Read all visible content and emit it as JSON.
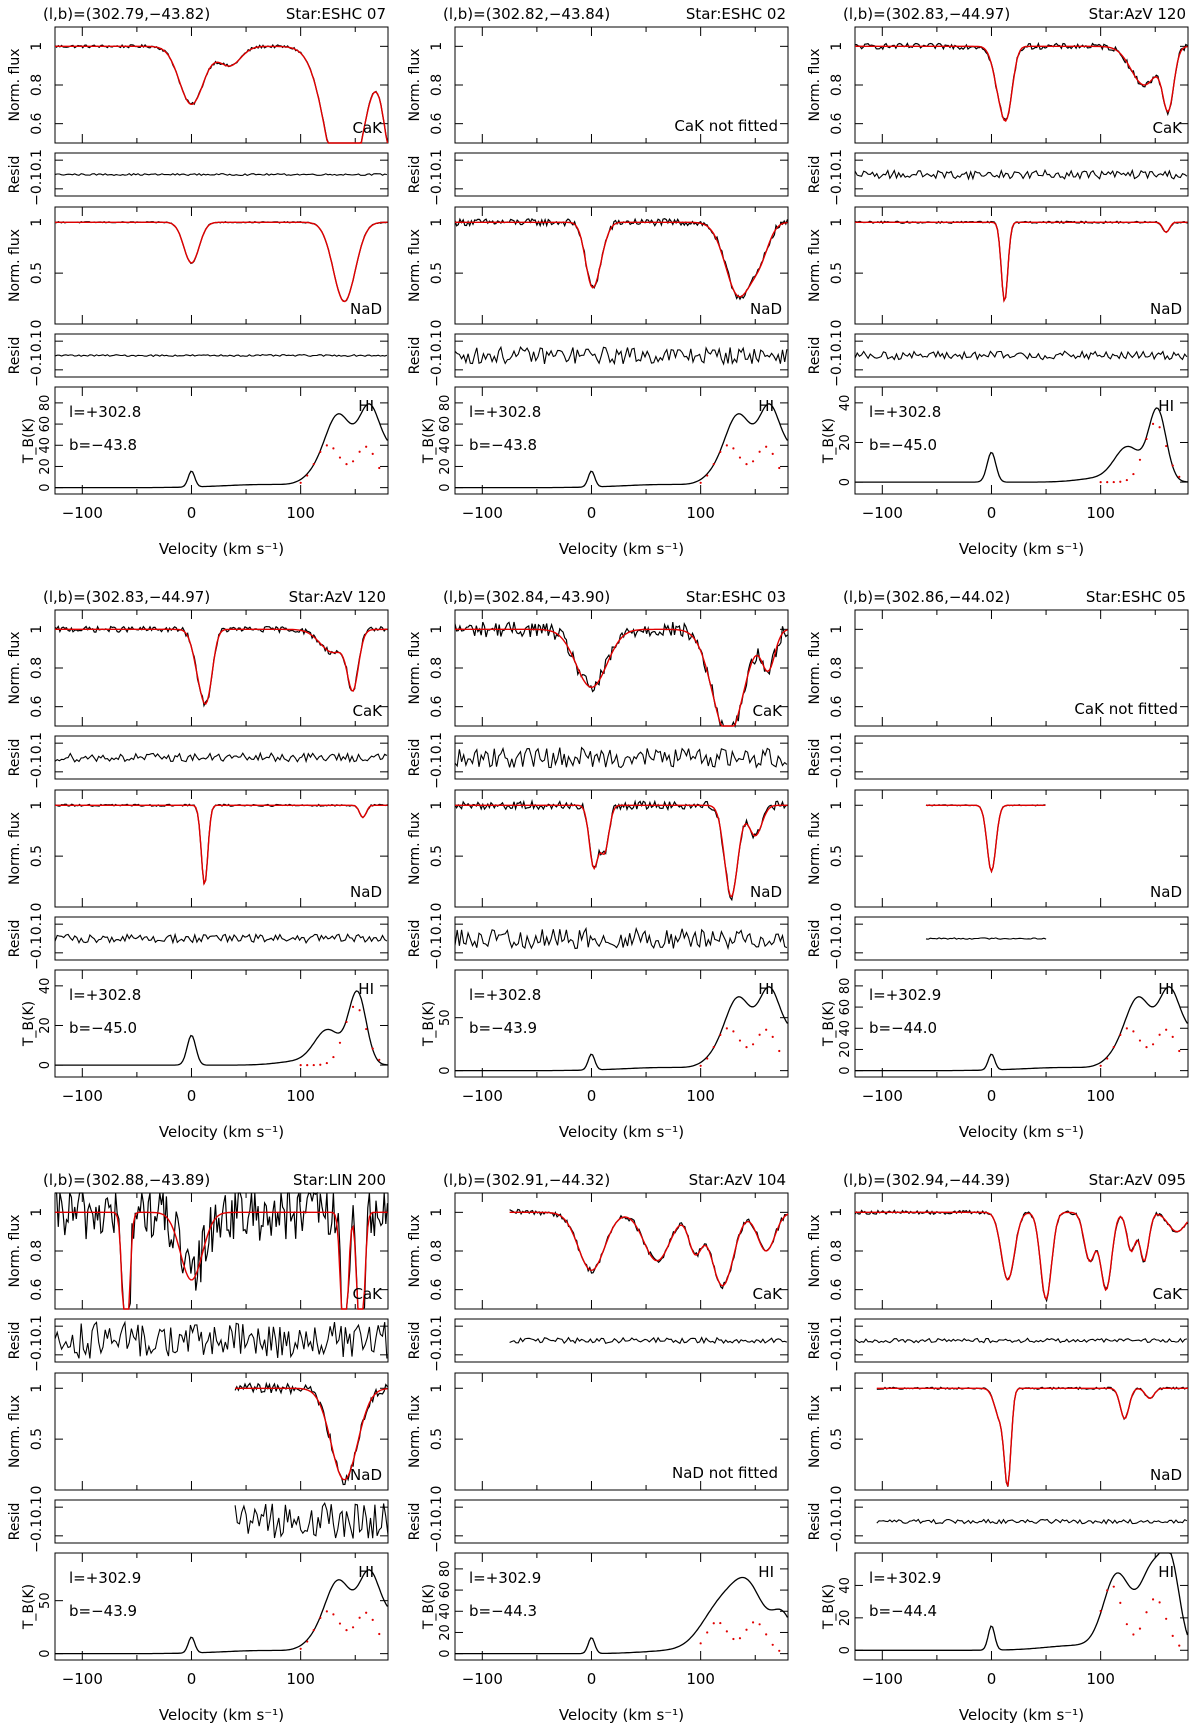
{
  "chart_data": {
    "type": "line",
    "labels": {
      "cak_ylabel": "Norm. flux",
      "nad_ylabel": "Norm. flux",
      "resid_ylabel": "Resid",
      "hi_ylabel": "T_B(K)",
      "xlabel": "Velocity (km s⁻¹)",
      "cak_label": "CaK",
      "nad_label": "NaD",
      "hi_label": "HI",
      "cak_not_fitted": "CaK not fitted",
      "nad_not_fitted": "NaD not fitted"
    },
    "x_axis": {
      "range": [
        -125,
        180
      ],
      "ticks": [
        -100,
        0,
        100
      ]
    },
    "cak_axis": {
      "range": [
        0.5,
        1.1
      ],
      "ticks": [
        0.6,
        0.8,
        1
      ]
    },
    "nad_axis": {
      "range": [
        0,
        1.15
      ],
      "ticks": [
        0,
        0.5,
        1
      ]
    },
    "resid_axis": {
      "range": [
        -0.15,
        0.15
      ],
      "ticks": [
        -0.1,
        0,
        0.1
      ]
    },
    "panels": [
      {
        "coords": "(l,b)=(302.79,−43.82)",
        "star": "Star:ESHC 07",
        "l_text": "l=+302.8",
        "b_text": "b=−43.8",
        "cak": {
          "xmin": -125,
          "xmax": 180,
          "comps": [
            [
              0,
              0.3,
              11
            ],
            [
              35,
              0.1,
              10
            ],
            [
              140,
              0.8,
              16
            ],
            [
              185,
              0.6,
              8
            ]
          ],
          "noise": 0.008
        },
        "nad": {
          "xmin": -125,
          "xmax": 180,
          "comps": [
            [
              0,
              0.4,
              7
            ],
            [
              140,
              0.78,
              10
            ]
          ],
          "noise": 0.006
        },
        "hi": {
          "ymax": 95,
          "ticks": [
            0,
            20,
            40,
            60,
            80
          ],
          "comps": [
            [
              0,
              15,
              3
            ],
            [
              70,
              3,
              40
            ],
            [
              115,
              10,
              12
            ],
            [
              135,
              65,
              12
            ],
            [
              163,
              72,
              10
            ],
            [
              185,
              30,
              10
            ]
          ],
          "dotted": [
            [
              125,
              40,
              12
            ],
            [
              160,
              38,
              10
            ]
          ]
        },
        "resid_noise": 0.006
      },
      {
        "coords": "(l,b)=(302.82,−43.84)",
        "star": "Star:ESHC 02",
        "l_text": "l=+302.8",
        "b_text": "b=−43.8",
        "cak": null,
        "nad": {
          "xmin": -125,
          "xmax": 180,
          "comps": [
            [
              0,
              0.55,
              6
            ],
            [
              8,
              0.2,
              6
            ],
            [
              135,
              0.72,
              12
            ],
            [
              155,
              0.25,
              8
            ]
          ],
          "noise": 0.035
        },
        "hi": {
          "ymax": 95,
          "ticks": [
            0,
            20,
            40,
            60,
            80
          ],
          "comps": [
            [
              0,
              15,
              3
            ],
            [
              70,
              3,
              40
            ],
            [
              115,
              10,
              12
            ],
            [
              135,
              65,
              12
            ],
            [
              163,
              72,
              10
            ],
            [
              185,
              30,
              10
            ]
          ],
          "dotted": [
            [
              125,
              40,
              12
            ],
            [
              160,
              38,
              10
            ]
          ]
        },
        "resid_noise": 0.06
      },
      {
        "coords": "(l,b)=(302.83,−44.97)",
        "star": "Star:AzV 120",
        "l_text": "l=+302.8",
        "b_text": "b=−45.0",
        "cak": {
          "xmin": -125,
          "xmax": 180,
          "comps": [
            [
              8,
              0.22,
              6
            ],
            [
              15,
              0.25,
              5
            ],
            [
              140,
              0.2,
              12
            ],
            [
              162,
              0.3,
              5
            ]
          ],
          "noise": 0.015
        },
        "nad": {
          "xmin": -125,
          "xmax": 180,
          "comps": [
            [
              12,
              0.78,
              3
            ],
            [
              160,
              0.1,
              3
            ]
          ],
          "noise": 0.01
        },
        "hi": {
          "ymax": 48,
          "ticks": [
            0,
            20,
            40
          ],
          "comps": [
            [
              0,
              15,
              4
            ],
            [
              125,
              17,
              12
            ],
            [
              152,
              36,
              8
            ],
            [
              100,
              2,
              20
            ]
          ],
          "dotted": [
            [
              150,
              30,
              10
            ]
          ]
        },
        "resid_noise": 0.03
      },
      {
        "coords": "(l,b)=(302.83,−44.97)",
        "star": "Star:AzV 120",
        "l_text": "l=+302.8",
        "b_text": "b=−45.0",
        "cak": {
          "xmin": -125,
          "xmax": 180,
          "comps": [
            [
              8,
              0.22,
              6
            ],
            [
              15,
              0.25,
              5
            ],
            [
              130,
              0.12,
              12
            ],
            [
              148,
              0.28,
              5
            ]
          ],
          "noise": 0.015
        },
        "nad": {
          "xmin": -125,
          "xmax": 180,
          "comps": [
            [
              12,
              0.78,
              3
            ],
            [
              157,
              0.12,
              3
            ]
          ],
          "noise": 0.01
        },
        "hi": {
          "ymax": 48,
          "ticks": [
            0,
            20,
            40
          ],
          "comps": [
            [
              0,
              15,
              4
            ],
            [
              125,
              17,
              12
            ],
            [
              152,
              36,
              8
            ],
            [
              100,
              2,
              20
            ]
          ],
          "dotted": [
            [
              150,
              30,
              10
            ]
          ]
        },
        "resid_noise": 0.03
      },
      {
        "coords": "(l,b)=(302.84,−43.90)",
        "star": "Star:ESHC 03",
        "l_text": "l=+302.8",
        "b_text": "b=−43.9",
        "cak": {
          "xmin": -125,
          "xmax": 180,
          "comps": [
            [
              0,
              0.3,
              14
            ],
            [
              125,
              0.55,
              14
            ],
            [
              162,
              0.2,
              6
            ]
          ],
          "noise": 0.04
        },
        "nad": {
          "xmin": -125,
          "xmax": 180,
          "comps": [
            [
              2,
              0.6,
              4
            ],
            [
              12,
              0.45,
              4
            ],
            [
              128,
              0.9,
              6
            ],
            [
              150,
              0.3,
              6
            ]
          ],
          "noise": 0.04
        },
        "hi": {
          "ymax": 95,
          "ticks": [
            0,
            50
          ],
          "comps": [
            [
              0,
              15,
              3
            ],
            [
              70,
              3,
              40
            ],
            [
              115,
              10,
              12
            ],
            [
              135,
              65,
              12
            ],
            [
              163,
              72,
              10
            ],
            [
              185,
              30,
              10
            ]
          ],
          "dotted": [
            [
              125,
              40,
              12
            ],
            [
              160,
              38,
              10
            ]
          ]
        },
        "resid_noise": 0.07
      },
      {
        "coords": "(l,b)=(302.86,−44.02)",
        "star": "Star:ESHC 05",
        "l_text": "l=+302.9",
        "b_text": "b=−44.0",
        "cak": null,
        "nad": {
          "xmin": -60,
          "xmax": 50,
          "comps": [
            [
              0,
              0.65,
              4
            ]
          ],
          "noise": 0.005
        },
        "hi": {
          "ymax": 95,
          "ticks": [
            0,
            20,
            40,
            60,
            80
          ],
          "comps": [
            [
              0,
              15,
              3
            ],
            [
              70,
              3,
              40
            ],
            [
              115,
              10,
              12
            ],
            [
              135,
              65,
              12
            ],
            [
              163,
              72,
              10
            ],
            [
              185,
              30,
              10
            ]
          ],
          "dotted": [
            [
              125,
              40,
              12
            ],
            [
              160,
              38,
              10
            ]
          ]
        },
        "resid_noise": 0.005
      },
      {
        "coords": "(l,b)=(302.88,−43.89)",
        "star": "Star:LIN 200",
        "l_text": "l=+302.9",
        "b_text": "b=−43.9",
        "cak": {
          "xmin": -125,
          "xmax": 180,
          "comps": [
            [
              -60,
              0.8,
              3
            ],
            [
              0,
              0.35,
              10
            ],
            [
              140,
              0.8,
              3
            ],
            [
              155,
              0.8,
              3
            ]
          ],
          "noise": 0.15
        },
        "nad": {
          "xmin": 40,
          "xmax": 180,
          "comps": [
            [
              140,
              0.9,
              12
            ]
          ],
          "noise": 0.05
        },
        "hi": {
          "ymax": 95,
          "ticks": [
            0,
            50
          ],
          "comps": [
            [
              0,
              15,
              3
            ],
            [
              70,
              3,
              40
            ],
            [
              115,
              10,
              12
            ],
            [
              135,
              65,
              12
            ],
            [
              163,
              72,
              10
            ],
            [
              185,
              30,
              10
            ]
          ],
          "dotted": [
            [
              125,
              40,
              12
            ],
            [
              160,
              38,
              10
            ]
          ]
        },
        "resid_noise": 0.13
      },
      {
        "coords": "(l,b)=(302.91,−44.32)",
        "star": "Star:AzV 104",
        "l_text": "l=+302.9",
        "b_text": "b=−44.3",
        "cak": {
          "xmin": -75,
          "xmax": 180,
          "comps": [
            [
              0,
              0.3,
              12
            ],
            [
              60,
              0.25,
              12
            ],
            [
              95,
              0.2,
              6
            ],
            [
              120,
              0.38,
              10
            ],
            [
              160,
              0.2,
              8
            ]
          ],
          "noise": 0.015
        },
        "nad": null,
        "hi": {
          "ymax": 95,
          "ticks": [
            0,
            20,
            40,
            60,
            80
          ],
          "comps": [
            [
              0,
              15,
              3
            ],
            [
              80,
              3,
              30
            ],
            [
              120,
              45,
              18
            ],
            [
              145,
              50,
              14
            ],
            [
              175,
              35,
              10
            ]
          ],
          "dotted": [
            [
              115,
              30,
              10
            ],
            [
              150,
              30,
              10
            ]
          ]
        },
        "resid_noise": 0.02
      },
      {
        "coords": "(l,b)=(302.94,−44.39)",
        "star": "Star:AzV 095",
        "l_text": "l=+302.9",
        "b_text": "b=−44.4",
        "cak": {
          "xmin": -125,
          "xmax": 180,
          "comps": [
            [
              15,
              0.35,
              6
            ],
            [
              50,
              0.45,
              5
            ],
            [
              90,
              0.25,
              5
            ],
            [
              105,
              0.4,
              5
            ],
            [
              128,
              0.2,
              4
            ],
            [
              140,
              0.25,
              4
            ],
            [
              170,
              0.1,
              8
            ]
          ],
          "noise": 0.01
        },
        "nad": {
          "xmin": -105,
          "xmax": 180,
          "comps": [
            [
              15,
              0.85,
              3
            ],
            [
              8,
              0.3,
              5
            ],
            [
              122,
              0.3,
              4
            ],
            [
              145,
              0.1,
              4
            ]
          ],
          "noise": 0.01
        },
        "hi": {
          "ymax": 60,
          "ticks": [
            0,
            20,
            40
          ],
          "comps": [
            [
              0,
              15,
              3
            ],
            [
              80,
              3,
              30
            ],
            [
              115,
              45,
              12
            ],
            [
              148,
              50,
              12
            ],
            [
              165,
              40,
              8
            ]
          ],
          "dotted": [
            [
              110,
              40,
              10
            ],
            [
              150,
              32,
              10
            ]
          ]
        },
        "resid_noise": 0.015
      }
    ]
  }
}
